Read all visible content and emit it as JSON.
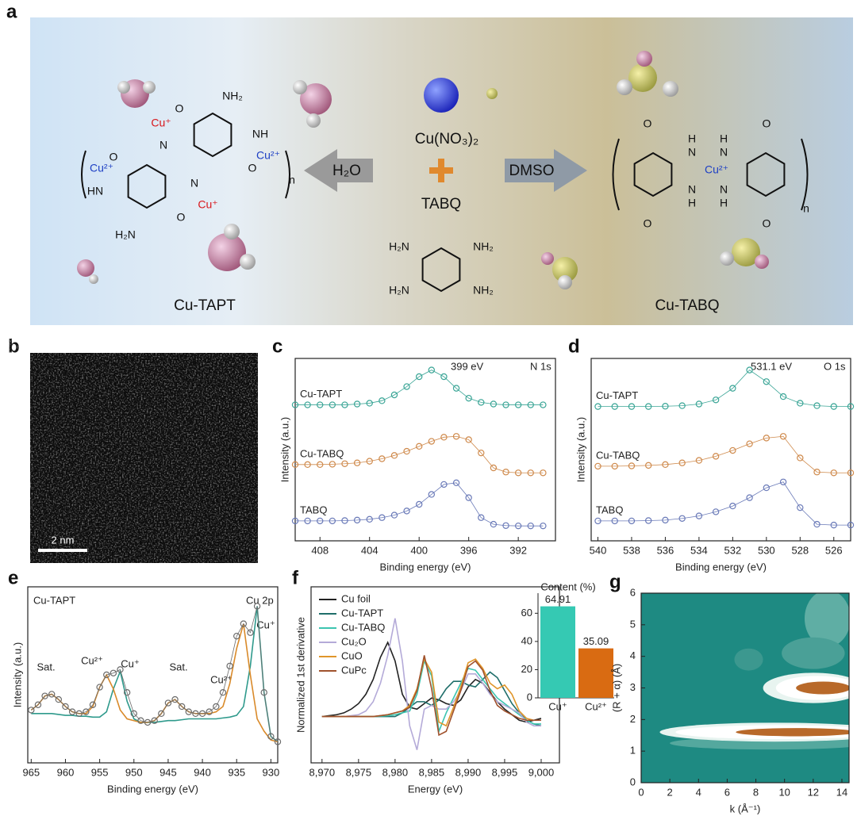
{
  "panel_a": {
    "letter": "a",
    "left_name": "Cu-TAPT",
    "right_name": "Cu-TABQ",
    "arrow_left": "H₂O",
    "arrow_right": "DMSO",
    "salt": "Cu(NO₃)₂",
    "ligand": "TABQ",
    "left_labels": [
      "NH₂",
      "O",
      "Cu⁺",
      "N",
      "NH",
      "Cu²⁺",
      "O",
      "n",
      "O",
      "Cu²⁺",
      "HN",
      "N",
      "Cu⁺",
      "O",
      "H₂N"
    ],
    "right_labels": [
      "O",
      "H",
      "N",
      "Cu²⁺",
      "N",
      "H",
      "H",
      "N",
      "N",
      "H",
      "O",
      "O",
      "O",
      "n"
    ],
    "ligand_labels": [
      "H₂N",
      "NH₂",
      "H₂N",
      "NH₂"
    ]
  },
  "panel_b": {
    "letter": "b",
    "scale_bar": "2 nm"
  },
  "chart_data": [
    {
      "type": "line",
      "panel": "c",
      "x_label": "Binding energy (eV)",
      "y_label": "Intensity (a.u.)",
      "annotations": [
        "399 eV",
        "N 1s"
      ],
      "xlim": [
        410,
        389
      ],
      "xticks": [
        408,
        404,
        400,
        396,
        392
      ],
      "ylim": [
        0,
        11
      ],
      "legend": "on-curve",
      "x": [
        410,
        409,
        408,
        407,
        406,
        405,
        404,
        403,
        402,
        401,
        400,
        399,
        398,
        397,
        396,
        395,
        394,
        393,
        392,
        391,
        390
      ],
      "series": [
        {
          "name": "Cu-TAPT",
          "color": "#3aa596",
          "style": "markers",
          "values": [
            8.2,
            8.2,
            8.2,
            8.2,
            8.2,
            8.25,
            8.3,
            8.45,
            8.8,
            9.3,
            9.9,
            10.3,
            9.9,
            9.2,
            8.6,
            8.35,
            8.25,
            8.2,
            8.2,
            8.2,
            8.2
          ]
        },
        {
          "name": "Cu-TABQ",
          "color": "#cf8a4c",
          "style": "markers",
          "values": [
            4.6,
            4.6,
            4.6,
            4.62,
            4.65,
            4.7,
            4.8,
            4.95,
            5.15,
            5.4,
            5.7,
            6.0,
            6.25,
            6.3,
            6.1,
            5.3,
            4.4,
            4.15,
            4.1,
            4.1,
            4.1
          ]
        },
        {
          "name": "TABQ",
          "color": "#6a7ab8",
          "style": "markers",
          "values": [
            1.2,
            1.2,
            1.2,
            1.2,
            1.22,
            1.25,
            1.3,
            1.4,
            1.55,
            1.8,
            2.2,
            2.8,
            3.4,
            3.5,
            2.6,
            1.4,
            1.0,
            0.92,
            0.9,
            0.9,
            0.9
          ]
        }
      ]
    },
    {
      "type": "line",
      "panel": "d",
      "x_label": "Binding energy (eV)",
      "y_label": "Intensity (a.u.)",
      "annotations": [
        "531.1 eV",
        "O 1s"
      ],
      "xlim": [
        540.4,
        525
      ],
      "xticks": [
        540,
        538,
        536,
        534,
        532,
        530,
        528,
        526
      ],
      "ylim": [
        0,
        11
      ],
      "legend": "on-curve",
      "x": [
        540,
        539,
        538,
        537,
        536,
        535,
        534,
        533,
        532,
        531,
        530,
        529,
        528,
        527,
        526,
        525
      ],
      "series": [
        {
          "name": "Cu-TAPT",
          "color": "#3aa596",
          "style": "markers",
          "values": [
            8.1,
            8.1,
            8.1,
            8.1,
            8.12,
            8.15,
            8.25,
            8.5,
            9.2,
            10.3,
            9.6,
            8.7,
            8.3,
            8.15,
            8.1,
            8.1
          ]
        },
        {
          "name": "Cu-TABQ",
          "color": "#cf8a4c",
          "style": "markers",
          "values": [
            4.5,
            4.5,
            4.52,
            4.55,
            4.6,
            4.7,
            4.85,
            5.1,
            5.45,
            5.85,
            6.2,
            6.3,
            5.0,
            4.15,
            4.1,
            4.1
          ]
        },
        {
          "name": "TABQ",
          "color": "#6a7ab8",
          "style": "markers",
          "values": [
            1.2,
            1.2,
            1.2,
            1.22,
            1.25,
            1.35,
            1.5,
            1.75,
            2.1,
            2.6,
            3.2,
            3.55,
            2.0,
            1.0,
            0.95,
            0.95
          ]
        }
      ]
    },
    {
      "type": "line",
      "panel": "e",
      "x_label": "Binding energy (eV)",
      "y_label": "Intensity (a.u.)",
      "annotations": [
        "Cu-TAPT",
        "Cu 2p",
        "Sat.",
        "Cu²⁺",
        "Cu⁺",
        "Sat.",
        "Cu²⁺",
        "Cu⁺"
      ],
      "xlim": [
        965.5,
        929
      ],
      "xticks": [
        965,
        960,
        955,
        950,
        945,
        940,
        935,
        930
      ],
      "ylim": [
        0,
        10
      ],
      "x": [
        965,
        964,
        963,
        962,
        961,
        960,
        959,
        958,
        957,
        956,
        955,
        954,
        953,
        952,
        951,
        950,
        949,
        948,
        947,
        946,
        945,
        944,
        943,
        942,
        941,
        940,
        939,
        938,
        937,
        936,
        935,
        934,
        933,
        932,
        931,
        930,
        929
      ],
      "series": [
        {
          "color": "#2f9a8c",
          "style": "line",
          "values": [
            2.8,
            2.8,
            2.8,
            2.8,
            2.75,
            2.7,
            2.7,
            2.65,
            2.65,
            2.6,
            2.6,
            2.9,
            4.2,
            5.2,
            3.5,
            2.5,
            2.3,
            2.3,
            2.3,
            2.35,
            2.4,
            2.4,
            2.45,
            2.5,
            2.5,
            2.5,
            2.5,
            2.5,
            2.55,
            2.6,
            2.7,
            3.2,
            5.5,
            8.9,
            4.0,
            1.5,
            1.2
          ]
        },
        {
          "color": "#d98a2a",
          "style": "line",
          "values": [
            3.0,
            3.3,
            3.8,
            3.9,
            3.6,
            3.2,
            2.9,
            2.8,
            2.8,
            3.2,
            4.3,
            5.0,
            4.2,
            3.0,
            2.5,
            2.4,
            2.3,
            2.3,
            2.4,
            2.8,
            3.4,
            3.6,
            3.2,
            2.9,
            2.8,
            2.8,
            2.8,
            2.9,
            3.2,
            4.5,
            6.5,
            7.9,
            5.0,
            2.5,
            1.8,
            1.3,
            1.2
          ]
        },
        {
          "color": "#6b6b6b",
          "style": "markers",
          "values": [
            3.0,
            3.3,
            3.8,
            3.9,
            3.6,
            3.2,
            2.9,
            2.8,
            2.9,
            3.3,
            4.3,
            5.0,
            5.1,
            5.3,
            4.0,
            2.8,
            2.4,
            2.3,
            2.4,
            2.8,
            3.4,
            3.6,
            3.2,
            2.9,
            2.8,
            2.8,
            2.9,
            3.2,
            4.0,
            5.5,
            7.2,
            7.9,
            7.4,
            8.9,
            4.0,
            1.5,
            1.2
          ]
        }
      ]
    },
    {
      "type": "line",
      "panel": "f",
      "x_label": "Energy (eV)",
      "y_label": "Normalized 1st derivative",
      "legend": "upper left",
      "xlim": [
        8968.5,
        9002.5
      ],
      "xticks": [
        {
          "value": 8970,
          "label": "8,970"
        },
        {
          "value": 8975,
          "label": "8,975"
        },
        {
          "value": 8980,
          "label": "8,980"
        },
        {
          "value": 8985,
          "label": "8,985"
        },
        {
          "value": 8990,
          "label": "8,990"
        },
        {
          "value": 8995,
          "label": "8,995"
        },
        {
          "value": 9000,
          "label": "9,000"
        }
      ],
      "ylim": [
        -2.5,
        7
      ],
      "x": [
        8970,
        8971,
        8972,
        8973,
        8974,
        8975,
        8976,
        8977,
        8978,
        8979,
        8980,
        8981,
        8982,
        8983,
        8984,
        8985,
        8986,
        8987,
        8988,
        8989,
        8990,
        8991,
        8992,
        8993,
        8994,
        8995,
        8996,
        8997,
        8998,
        8999,
        9000
      ],
      "series": [
        {
          "name": "Cu foil",
          "color": "#222222",
          "style": "line",
          "values": [
            0,
            0.05,
            0.1,
            0.2,
            0.4,
            0.7,
            1.2,
            2.0,
            3.2,
            4.0,
            3.0,
            1.2,
            0.5,
            0.4,
            0.7,
            1.0,
            0.9,
            0.7,
            0.6,
            0.9,
            1.6,
            2.0,
            1.8,
            1.3,
            0.8,
            0.4,
            0.1,
            -0.2,
            -0.3,
            -0.2,
            -0.1
          ]
        },
        {
          "name": "Cu-TAPT",
          "color": "#1f6e6a",
          "style": "line",
          "values": [
            0,
            0,
            0,
            0,
            0,
            0,
            0,
            0,
            0,
            0,
            0,
            0.2,
            0.5,
            0.8,
            0.8,
            0.6,
            0.9,
            1.5,
            1.9,
            1.9,
            1.7,
            1.6,
            2.0,
            2.4,
            2.1,
            1.4,
            0.7,
            0.2,
            -0.2,
            -0.4,
            -0.5
          ]
        },
        {
          "name": "Cu-TABQ",
          "color": "#3cc4b0",
          "style": "line",
          "values": [
            0,
            0,
            0,
            0,
            0,
            0,
            0,
            0,
            0.02,
            0.05,
            0.1,
            0.2,
            0.3,
            1.2,
            3.0,
            2.2,
            -0.8,
            0.2,
            1.0,
            1.8,
            2.6,
            2.5,
            2.0,
            1.5,
            1.0,
            0.7,
            0.4,
            0.1,
            -0.2,
            -0.4,
            -0.4
          ]
        },
        {
          "name": "Cu₂O",
          "color": "#b4aad8",
          "style": "line",
          "values": [
            0,
            0,
            0,
            0,
            0.05,
            0.1,
            0.3,
            0.8,
            1.8,
            3.3,
            5.3,
            3.0,
            -0.5,
            -1.8,
            0.4,
            0.6,
            0.4,
            0.4,
            0.8,
            1.4,
            2.3,
            2.3,
            1.8,
            1.2,
            0.8,
            0.6,
            0.4,
            0.2,
            -0.3,
            -0.5,
            -0.5
          ]
        },
        {
          "name": "CuO",
          "color": "#e0962a",
          "style": "line",
          "values": [
            0,
            0,
            0,
            0,
            0,
            0,
            0,
            0,
            0.05,
            0.1,
            0.2,
            0.3,
            0.6,
            1.5,
            3.1,
            2.4,
            -0.3,
            -0.5,
            0.5,
            1.6,
            2.9,
            3.1,
            2.6,
            1.8,
            1.5,
            1.7,
            1.2,
            0.3,
            -0.1,
            -0.2,
            -0.2
          ]
        },
        {
          "name": "CuPc",
          "color": "#a0522d",
          "style": "line",
          "values": [
            0,
            0,
            0,
            0,
            0,
            0,
            0,
            0,
            0.05,
            0.1,
            0.2,
            0.3,
            0.5,
            1.4,
            3.3,
            1.5,
            -1.0,
            -0.8,
            0.3,
            1.4,
            2.7,
            3.0,
            2.5,
            1.4,
            0.6,
            0.3,
            0.1,
            -0.1,
            -0.2,
            -0.2,
            -0.2
          ]
        }
      ]
    },
    {
      "type": "bar",
      "title": "Content (%)",
      "categories": [
        "Cu⁺",
        "Cu²⁺"
      ],
      "values": [
        64.91,
        35.09
      ],
      "colors": [
        "#35c9b3",
        "#d96b12"
      ],
      "ylim": [
        0,
        72
      ],
      "yticks": [
        0,
        20,
        40,
        60
      ]
    },
    {
      "type": "contour",
      "panel": "g",
      "x_label": "k (Å⁻¹)",
      "y_label": "(R + α) (Å)",
      "xlim": [
        0,
        14.5
      ],
      "xticks": [
        0,
        2,
        4,
        6,
        8,
        10,
        12,
        14
      ],
      "ylim": [
        0,
        6
      ],
      "yticks": [
        0,
        1,
        2,
        3,
        4,
        5,
        6
      ]
    }
  ]
}
